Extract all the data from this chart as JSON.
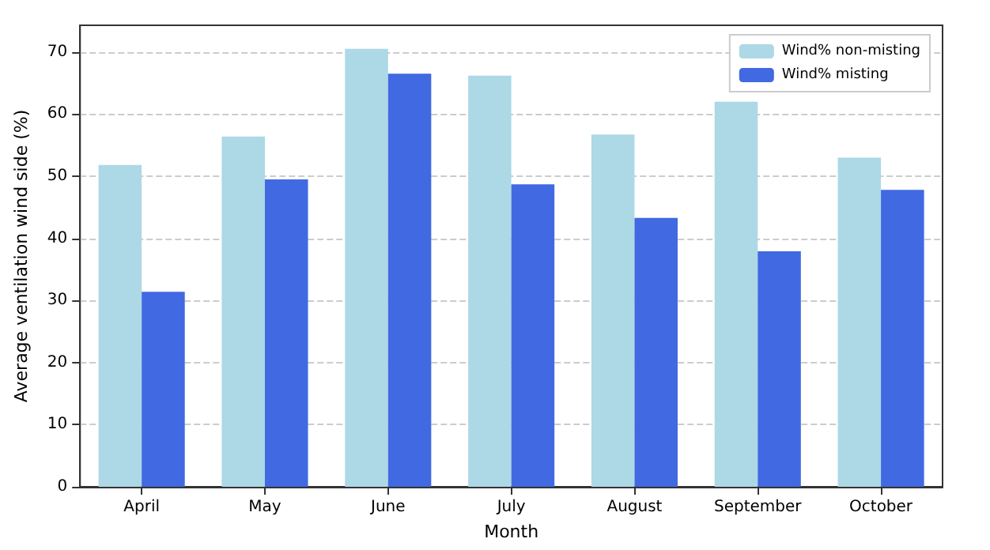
{
  "chart_data": {
    "type": "bar",
    "xlabel": "Month",
    "ylabel": "Average ventilation wind side (%)",
    "categories": [
      "April",
      "May",
      "June",
      "July",
      "August",
      "September",
      "October"
    ],
    "series": [
      {
        "name": "Wind% non-misting",
        "color": "#add8e6",
        "values": [
          51.8,
          56.4,
          70.5,
          66.2,
          56.7,
          62.0,
          53.0
        ]
      },
      {
        "name": "Wind% misting",
        "color": "#4169e1",
        "values": [
          31.4,
          49.5,
          66.5,
          48.7,
          43.3,
          37.9,
          47.8
        ]
      }
    ],
    "ylim": [
      0,
      74.3
    ],
    "yticks": [
      0,
      10,
      20,
      30,
      40,
      50,
      60,
      70
    ],
    "grid": "y",
    "legend": "top right"
  }
}
